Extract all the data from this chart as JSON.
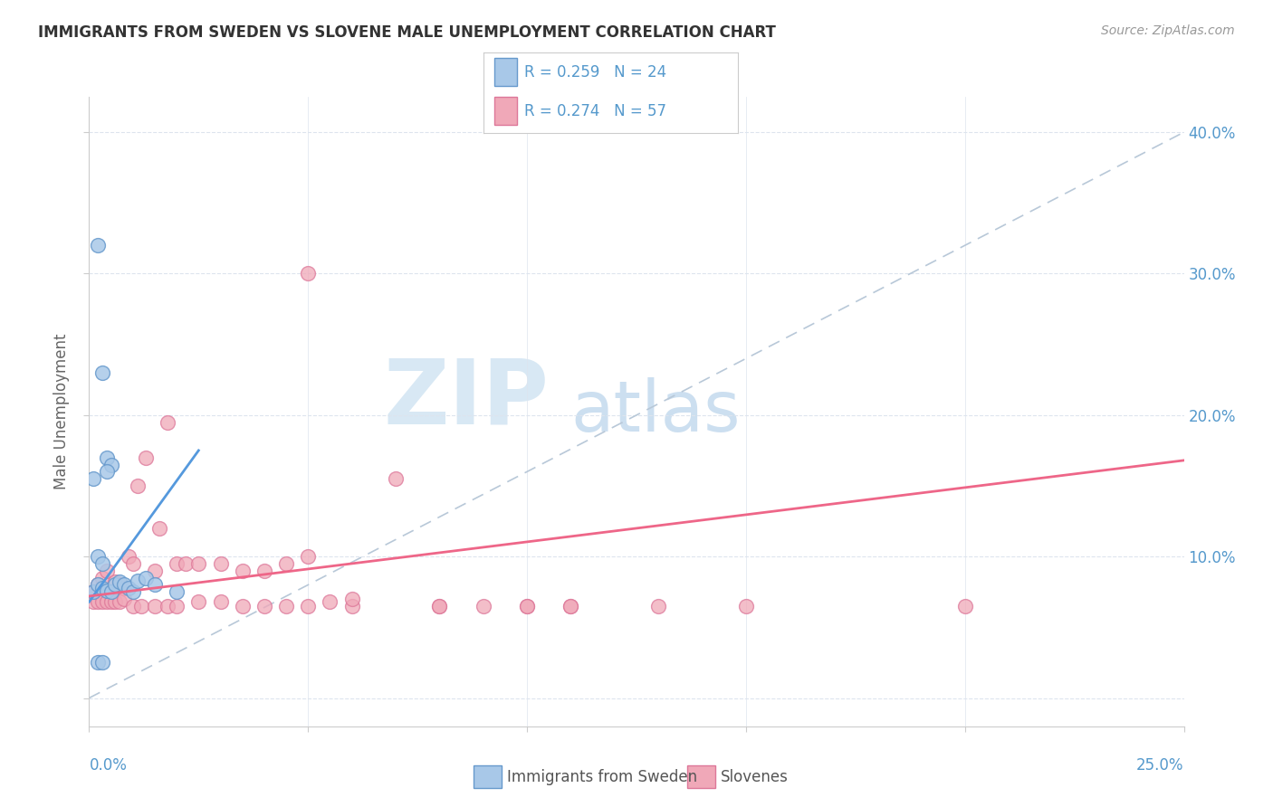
{
  "title": "IMMIGRANTS FROM SWEDEN VS SLOVENE MALE UNEMPLOYMENT CORRELATION CHART",
  "source": "Source: ZipAtlas.com",
  "ylabel": "Male Unemployment",
  "xmin": 0.0,
  "xmax": 0.25,
  "ymin": -0.02,
  "ymax": 0.425,
  "legend_label1": "Immigrants from Sweden",
  "legend_label2": "Slovenes",
  "R1": 0.259,
  "N1": 24,
  "R2": 0.274,
  "N2": 57,
  "color_blue": "#a8c8e8",
  "color_pink": "#f0a8b8",
  "color_blue_edge": "#6699cc",
  "color_pink_edge": "#dd7799",
  "color_blue_line": "#5599dd",
  "color_pink_line": "#ee6688",
  "color_blue_text": "#5599cc",
  "color_diag": "#b8c8d8",
  "color_grid": "#dde4ee",
  "sweden_x": [
    0.001,
    0.002,
    0.003,
    0.004,
    0.005,
    0.006,
    0.007,
    0.008,
    0.009,
    0.01,
    0.011,
    0.013,
    0.002,
    0.003,
    0.004,
    0.005,
    0.001,
    0.002,
    0.003,
    0.004,
    0.002,
    0.003,
    0.015,
    0.02
  ],
  "sweden_y": [
    0.075,
    0.08,
    0.078,
    0.076,
    0.075,
    0.08,
    0.082,
    0.08,
    0.078,
    0.075,
    0.083,
    0.085,
    0.32,
    0.23,
    0.17,
    0.165,
    0.155,
    0.1,
    0.095,
    0.16,
    0.025,
    0.025,
    0.08,
    0.075
  ],
  "slovene_x": [
    0.001,
    0.002,
    0.003,
    0.004,
    0.005,
    0.006,
    0.007,
    0.008,
    0.009,
    0.01,
    0.011,
    0.013,
    0.015,
    0.016,
    0.018,
    0.02,
    0.022,
    0.025,
    0.03,
    0.035,
    0.04,
    0.045,
    0.05,
    0.06,
    0.07,
    0.08,
    0.09,
    0.1,
    0.11,
    0.13,
    0.15,
    0.2,
    0.001,
    0.002,
    0.003,
    0.004,
    0.005,
    0.006,
    0.007,
    0.008,
    0.01,
    0.012,
    0.015,
    0.018,
    0.02,
    0.025,
    0.03,
    0.04,
    0.05,
    0.06,
    0.08,
    0.1,
    0.05,
    0.055,
    0.11,
    0.045,
    0.035
  ],
  "slovene_y": [
    0.075,
    0.08,
    0.085,
    0.09,
    0.075,
    0.082,
    0.08,
    0.078,
    0.1,
    0.095,
    0.15,
    0.17,
    0.09,
    0.12,
    0.195,
    0.095,
    0.095,
    0.095,
    0.095,
    0.09,
    0.09,
    0.095,
    0.1,
    0.065,
    0.155,
    0.065,
    0.065,
    0.065,
    0.065,
    0.065,
    0.065,
    0.065,
    0.068,
    0.068,
    0.068,
    0.068,
    0.068,
    0.068,
    0.068,
    0.07,
    0.065,
    0.065,
    0.065,
    0.065,
    0.065,
    0.068,
    0.068,
    0.065,
    0.065,
    0.07,
    0.065,
    0.065,
    0.3,
    0.068,
    0.065,
    0.065,
    0.065
  ],
  "ytick_vals": [
    0.0,
    0.1,
    0.2,
    0.3,
    0.4
  ],
  "xtick_vals": [
    0.0,
    0.05,
    0.1,
    0.15,
    0.2,
    0.25
  ]
}
